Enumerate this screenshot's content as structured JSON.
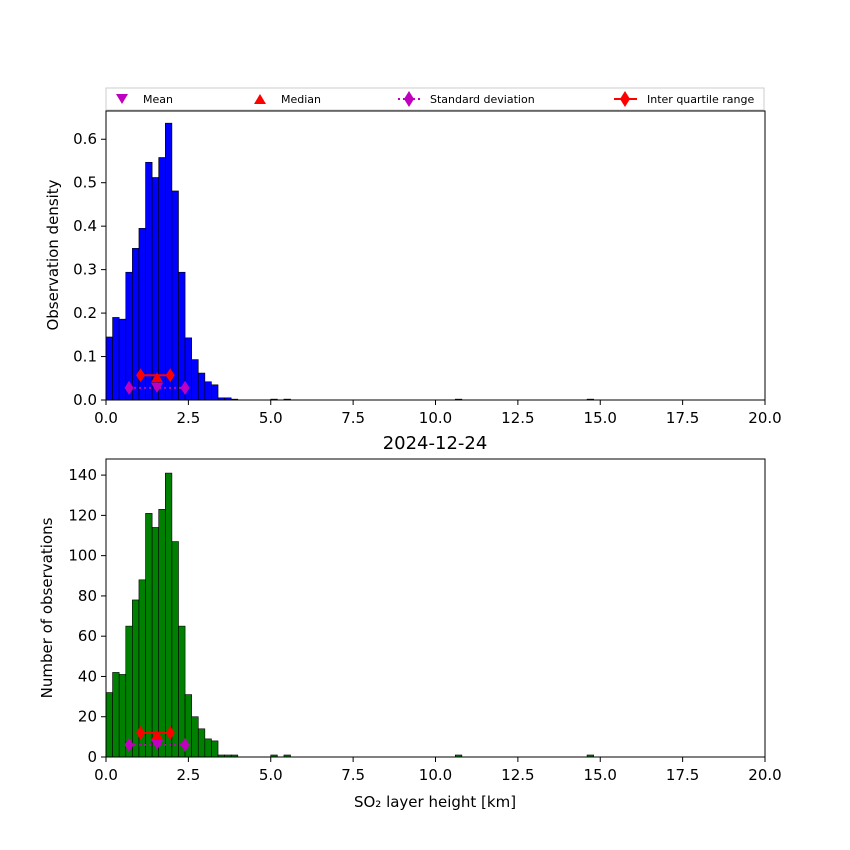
{
  "legend": {
    "mean": "Mean",
    "median": "Median",
    "std": "Standard deviation",
    "iqr": "Inter quartile range"
  },
  "colors": {
    "density_bar": "#0000ff",
    "count_bar": "#008000",
    "mean_std": "#bf00bf",
    "median_iqr": "#ff0000"
  },
  "chart_data": [
    {
      "type": "bar",
      "panel": "top",
      "title": "",
      "xlabel": "",
      "ylabel": "Observation density",
      "xlim": [
        0,
        20
      ],
      "ylim": [
        0,
        0.665
      ],
      "bin_width": 0.2,
      "xticks": [
        "0.0",
        "2.5",
        "5.0",
        "7.5",
        "10.0",
        "12.5",
        "15.0",
        "17.5",
        "20.0"
      ],
      "yticks": [
        "0.0",
        "0.1",
        "0.2",
        "0.3",
        "0.4",
        "0.5",
        "0.6"
      ],
      "bins": [
        {
          "x": 0.0,
          "v": 0.145
        },
        {
          "x": 0.2,
          "v": 0.19
        },
        {
          "x": 0.4,
          "v": 0.186
        },
        {
          "x": 0.6,
          "v": 0.294
        },
        {
          "x": 0.8,
          "v": 0.349
        },
        {
          "x": 1.0,
          "v": 0.395
        },
        {
          "x": 1.2,
          "v": 0.547
        },
        {
          "x": 1.4,
          "v": 0.512
        },
        {
          "x": 1.6,
          "v": 0.558
        },
        {
          "x": 1.8,
          "v": 0.637
        },
        {
          "x": 2.0,
          "v": 0.481
        },
        {
          "x": 2.2,
          "v": 0.294
        },
        {
          "x": 2.4,
          "v": 0.143
        },
        {
          "x": 2.6,
          "v": 0.093
        },
        {
          "x": 2.8,
          "v": 0.062
        },
        {
          "x": 3.0,
          "v": 0.042
        },
        {
          "x": 3.2,
          "v": 0.035
        },
        {
          "x": 3.4,
          "v": 0.005
        },
        {
          "x": 3.6,
          "v": 0.005
        },
        {
          "x": 3.8,
          "v": 0.002
        },
        {
          "x": 5.0,
          "v": 0.002
        },
        {
          "x": 5.4,
          "v": 0.002
        },
        {
          "x": 10.6,
          "v": 0.002
        },
        {
          "x": 14.6,
          "v": 0.002
        }
      ],
      "stats": {
        "mean": 1.55,
        "std_low": 0.7,
        "std_high": 2.4,
        "median": 1.55,
        "q1": 1.05,
        "q3": 1.95,
        "median_y": 0.052,
        "iqr_y": 0.057,
        "mean_y": 0.028
      }
    },
    {
      "type": "bar",
      "panel": "bottom",
      "title": "2024-12-24",
      "xlabel": "SO₂ layer height [km]",
      "ylabel": "Number of observations",
      "xlim": [
        0,
        20
      ],
      "ylim": [
        0,
        148
      ],
      "bin_width": 0.2,
      "xticks": [
        "0.0",
        "2.5",
        "5.0",
        "7.5",
        "10.0",
        "12.5",
        "15.0",
        "17.5",
        "20.0"
      ],
      "yticks": [
        "0",
        "20",
        "40",
        "60",
        "80",
        "100",
        "120",
        "140"
      ],
      "bins": [
        {
          "x": 0.0,
          "v": 32
        },
        {
          "x": 0.2,
          "v": 42
        },
        {
          "x": 0.4,
          "v": 41
        },
        {
          "x": 0.6,
          "v": 65
        },
        {
          "x": 0.8,
          "v": 78
        },
        {
          "x": 1.0,
          "v": 88
        },
        {
          "x": 1.2,
          "v": 121
        },
        {
          "x": 1.4,
          "v": 114
        },
        {
          "x": 1.6,
          "v": 123
        },
        {
          "x": 1.8,
          "v": 141
        },
        {
          "x": 2.0,
          "v": 107
        },
        {
          "x": 2.2,
          "v": 65
        },
        {
          "x": 2.4,
          "v": 31
        },
        {
          "x": 2.6,
          "v": 20
        },
        {
          "x": 2.8,
          "v": 14
        },
        {
          "x": 3.0,
          "v": 9
        },
        {
          "x": 3.2,
          "v": 8
        },
        {
          "x": 3.4,
          "v": 1
        },
        {
          "x": 3.6,
          "v": 1
        },
        {
          "x": 3.8,
          "v": 1
        },
        {
          "x": 5.0,
          "v": 1
        },
        {
          "x": 5.4,
          "v": 1
        },
        {
          "x": 10.6,
          "v": 1
        },
        {
          "x": 14.6,
          "v": 1
        }
      ],
      "stats": {
        "mean": 1.55,
        "std_low": 0.7,
        "std_high": 2.4,
        "median": 1.55,
        "q1": 1.05,
        "q3": 1.95,
        "median_y": 11,
        "iqr_y": 12,
        "mean_y": 6
      }
    }
  ]
}
